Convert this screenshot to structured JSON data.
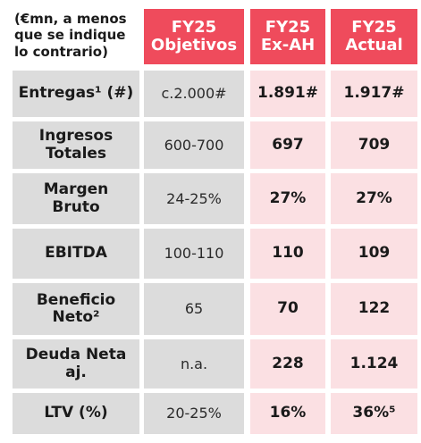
{
  "corner_note": "(€mn, a menos\nque se indique\nlo contrario)",
  "columns": [
    {
      "label": "FY25\nObjetivos"
    },
    {
      "label": "FY25\nEx-AH"
    },
    {
      "label": "FY25\nActual"
    }
  ],
  "rows": [
    {
      "label": "Entregas¹ (#)",
      "objetivo": "c.2.000#",
      "ex_ah": "1.891#",
      "actual": "1.917#"
    },
    {
      "label": "Ingresos\nTotales",
      "objetivo": "600-700",
      "ex_ah": "697",
      "actual": "709"
    },
    {
      "label": "Margen Bruto",
      "objetivo": "24-25%",
      "ex_ah": "27%",
      "actual": "27%"
    },
    {
      "label": "EBITDA",
      "objetivo": "100-110",
      "ex_ah": "110",
      "actual": "109"
    },
    {
      "label": "Beneficio\nNeto²",
      "objetivo": "65",
      "ex_ah": "70",
      "actual": "122"
    },
    {
      "label": "Deuda Neta\naj.",
      "objetivo": "n.a.",
      "ex_ah": "228",
      "actual": "1.124"
    },
    {
      "label": "LTV (%)",
      "objetivo": "20-25%",
      "ex_ah": "16%",
      "actual": "36%⁵"
    }
  ],
  "colors": {
    "header_red": "#ef4b5c",
    "label_gray": "#dcdcdc",
    "value_pink": "#fbe0e3"
  }
}
